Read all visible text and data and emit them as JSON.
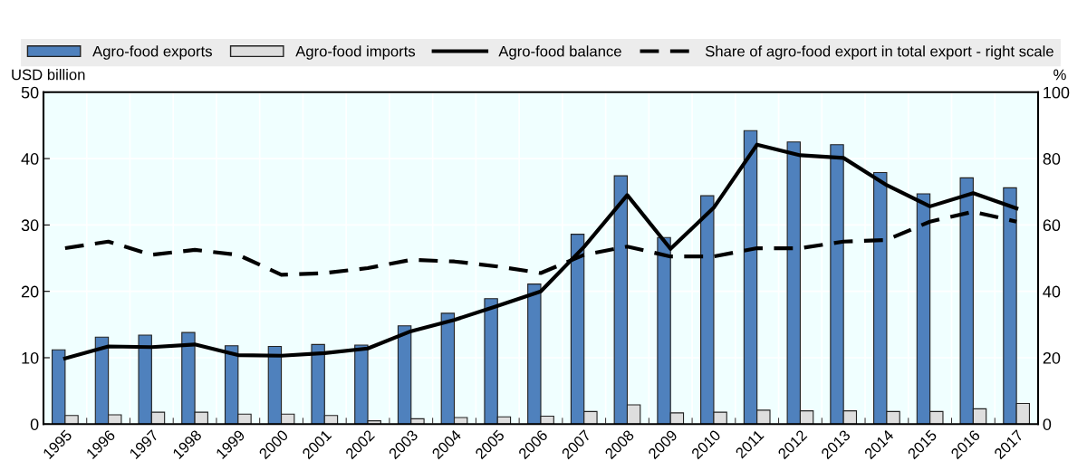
{
  "chart_data": {
    "type": "bar",
    "ylabel": "USD billion",
    "y2label": "%",
    "categories": [
      "1995",
      "1996",
      "1997",
      "1998",
      "1999",
      "2000",
      "2001",
      "2002",
      "2003",
      "2004",
      "2005",
      "2006",
      "2007",
      "2008",
      "2009",
      "2010",
      "2011",
      "2012",
      "2013",
      "2014",
      "2015",
      "2016",
      "2017"
    ],
    "series": [
      {
        "name": "Agro-food exports",
        "color": "#4f81bd",
        "values": [
          11.2,
          13.1,
          13.4,
          13.8,
          11.8,
          11.7,
          12.0,
          11.9,
          14.8,
          16.7,
          18.9,
          21.1,
          28.6,
          37.4,
          28.1,
          34.4,
          44.2,
          42.5,
          42.1,
          37.9,
          34.7,
          37.1,
          35.6
        ]
      },
      {
        "name": "Agro-food imports",
        "color": "#dedede",
        "values": [
          1.3,
          1.4,
          1.8,
          1.8,
          1.5,
          1.5,
          1.3,
          0.5,
          0.8,
          1.0,
          1.1,
          1.2,
          1.9,
          2.9,
          1.7,
          1.8,
          2.1,
          2.0,
          2.0,
          1.9,
          1.9,
          2.3,
          3.1
        ]
      },
      {
        "name": "Agro-food balance",
        "type": "line",
        "color": "#000000",
        "line_style": "solid",
        "values": [
          9.9,
          11.7,
          11.6,
          12.0,
          10.4,
          10.3,
          10.7,
          11.4,
          14.0,
          15.7,
          17.8,
          20.0,
          26.7,
          34.5,
          26.4,
          32.6,
          42.1,
          40.5,
          40.1,
          36.0,
          32.8,
          34.8,
          32.5
        ]
      },
      {
        "name": "Share of agro-food export in total export - right scale",
        "type": "line",
        "axis": "y2",
        "color": "#000000",
        "line_style": "dashed",
        "values": [
          53,
          55,
          51,
          52.5,
          51,
          45,
          45.5,
          47,
          49.5,
          49,
          47.5,
          45.5,
          51,
          53.5,
          50.5,
          50.5,
          53,
          53,
          55,
          55.5,
          61,
          64,
          61
        ]
      }
    ],
    "ylim": [
      0,
      50
    ],
    "yticks": [
      0,
      10,
      20,
      30,
      40,
      50
    ],
    "y2lim": [
      0,
      100
    ],
    "y2ticks": [
      0,
      20,
      40,
      60,
      80,
      100
    ],
    "grid": true,
    "legend": "top"
  }
}
